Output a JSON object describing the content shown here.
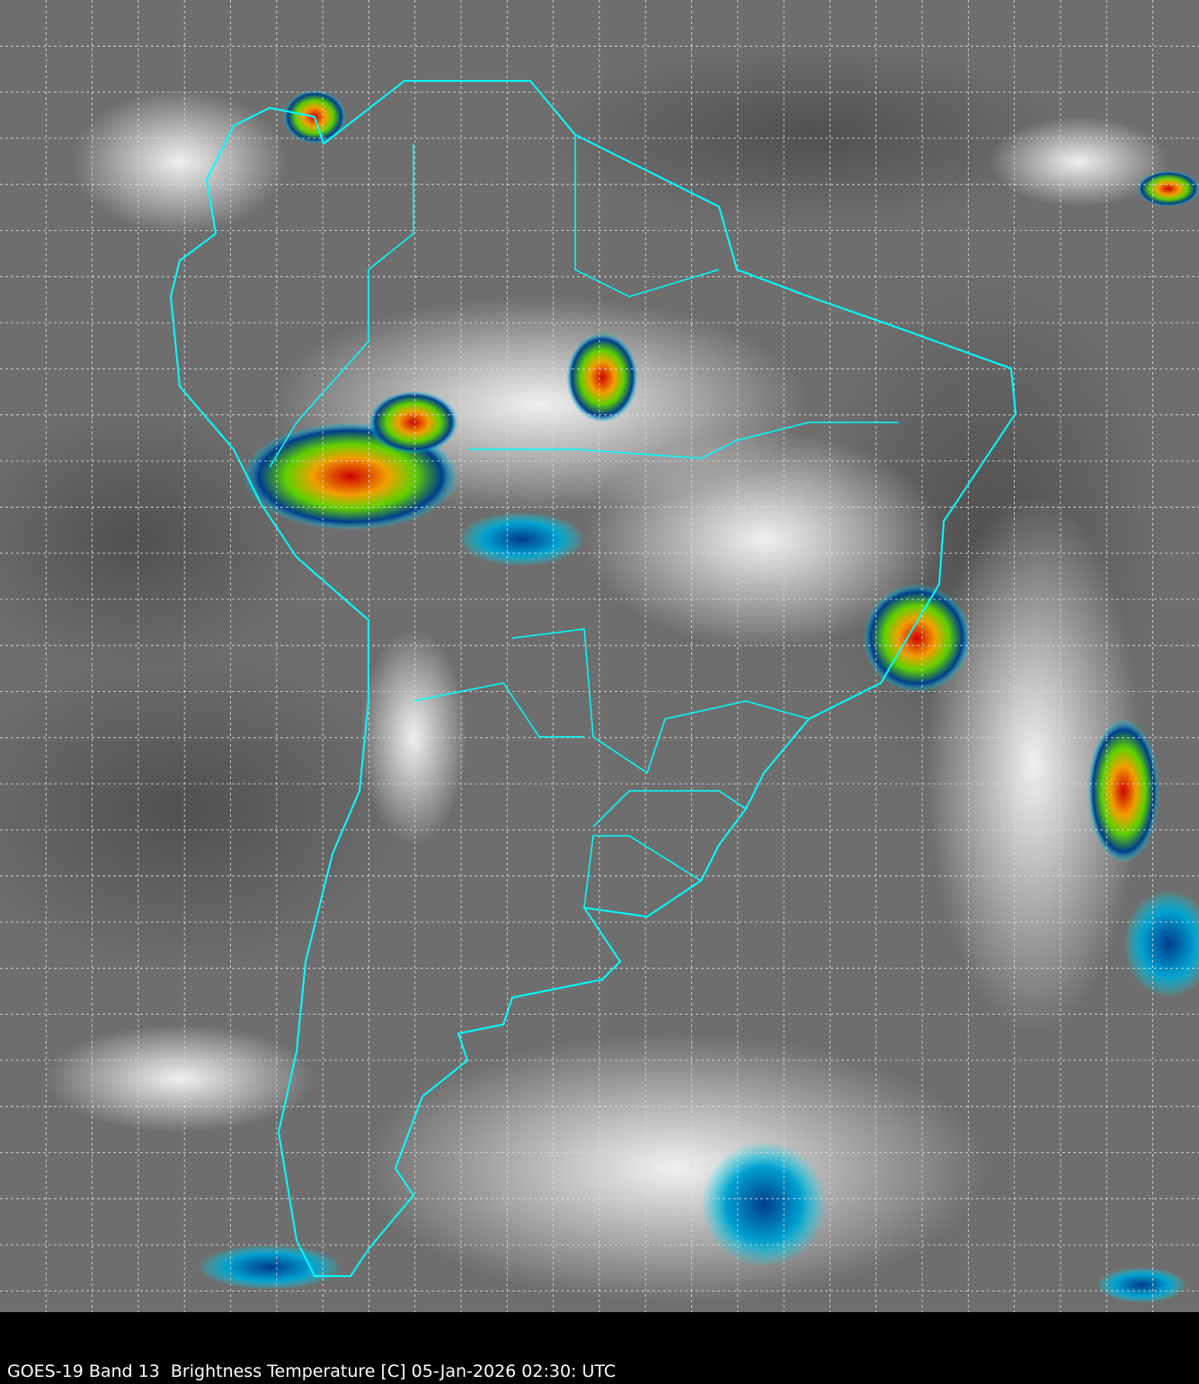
{
  "caption": "GOES-19 Band 13  Brightness Temperature [C] 05-Jan-2026 02:30: UTC",
  "colors": {
    "background_gray": "#6e6e6e",
    "border_lines": "#00ffff",
    "grid_lines": "#dddddd",
    "caption_bar": "#000000",
    "cold_cloud_blue": "#003c8c",
    "cold_cloud_green": "#5fd000",
    "cold_cloud_red": "#d00000",
    "cold_cloud_cyan": "#00e0f0"
  },
  "grid": {
    "style": "dashed",
    "visible": true
  }
}
